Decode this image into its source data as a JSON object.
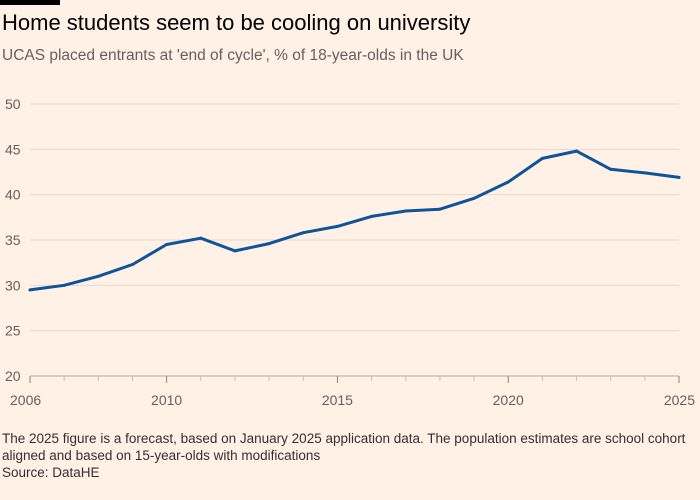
{
  "title": "Home students seem to be cooling on university",
  "subtitle": "UCAS placed entrants at 'end of cycle', % of 18-year-olds in the UK",
  "note": "The 2025 figure is a forecast, based on January 2025 application data. The population estimates are school cohort aligned and based on 15-year-olds with modifications",
  "source": "Source: DataHE",
  "colors": {
    "background": "#fff1e5",
    "line": "#0f5499",
    "gridline": "#e6d9ce",
    "text": "#66605c"
  },
  "chart_data": {
    "type": "line",
    "title": "Home students seem to be cooling on university",
    "subtitle": "UCAS placed entrants at 'end of cycle', % of 18-year-olds in the UK",
    "xlabel": "",
    "ylabel": "",
    "x": [
      2006,
      2007,
      2008,
      2009,
      2010,
      2011,
      2012,
      2013,
      2014,
      2015,
      2016,
      2017,
      2018,
      2019,
      2020,
      2021,
      2022,
      2023,
      2024,
      2025
    ],
    "series": [
      {
        "values": [
          29.5,
          30.0,
          31.0,
          32.3,
          34.5,
          35.2,
          33.8,
          34.6,
          35.8,
          36.5,
          37.6,
          38.2,
          38.4,
          39.6,
          41.4,
          44.0,
          44.8,
          42.8,
          42.4,
          41.9
        ]
      }
    ],
    "xlim": [
      2006,
      2025
    ],
    "ylim": [
      20,
      50
    ],
    "yticks": [
      20,
      25,
      30,
      35,
      40,
      45,
      50
    ],
    "xticks": [
      2006,
      2010,
      2015,
      2020,
      2025
    ],
    "grid": true,
    "legend": "none"
  }
}
